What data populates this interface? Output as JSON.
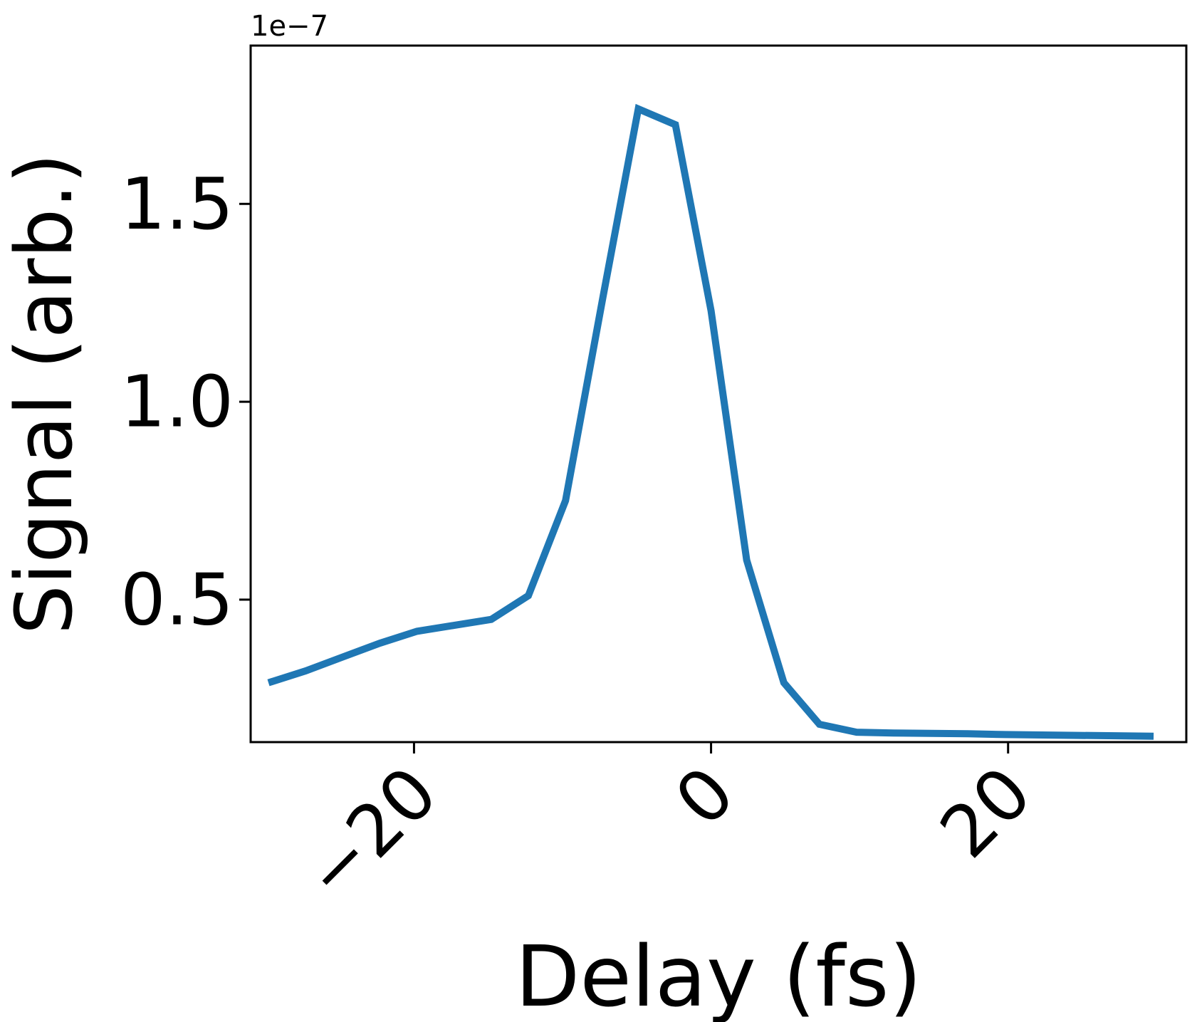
{
  "chart_data": {
    "type": "line",
    "title": "",
    "xlabel": "Delay (fs)",
    "ylabel": "Signal (arb.)",
    "y_offset_text": "1e−7",
    "xlim": [
      -31,
      32
    ],
    "ylim": [
      0.14,
      1.9
    ],
    "xticks": [
      {
        "value": -20,
        "label": "−20"
      },
      {
        "value": 0,
        "label": "0"
      },
      {
        "value": 20,
        "label": "20"
      }
    ],
    "yticks": [
      {
        "value": 0.5,
        "label": "0.5"
      },
      {
        "value": 1.0,
        "label": "1.0"
      },
      {
        "value": 1.5,
        "label": "1.5"
      }
    ],
    "grid": false,
    "series": [
      {
        "color": "#1f77b4",
        "x": [
          -29.8,
          -27.3,
          -24.8,
          -22.3,
          -19.8,
          -17.3,
          -14.8,
          -12.3,
          -9.8,
          -7.3,
          -4.9,
          -2.4,
          0,
          2.4,
          4.9,
          7.3,
          9.8,
          12.3,
          14.8,
          17.3,
          19.8,
          22.3,
          24.8,
          27.3,
          29.8
        ],
        "y": [
          0.29,
          0.32,
          0.355,
          0.39,
          0.42,
          0.435,
          0.45,
          0.51,
          0.75,
          1.26,
          1.74,
          1.7,
          1.23,
          0.6,
          0.29,
          0.185,
          0.165,
          0.163,
          0.162,
          0.161,
          0.159,
          0.158,
          0.157,
          0.156,
          0.155
        ]
      }
    ]
  }
}
